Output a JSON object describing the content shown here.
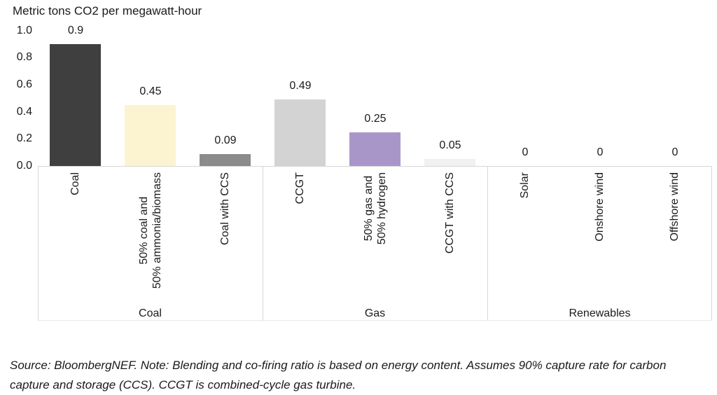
{
  "header": {
    "title": "Metric tons CO2 per megawatt-hour"
  },
  "footnote": {
    "text": "Source: BloombergNEF. Note: Blending and co-firing ratio is based on energy content. Assumes 90% capture rate for carbon capture and storage (CCS). CCGT is combined-cycle gas turbine."
  },
  "chart_data": {
    "type": "bar",
    "title": "Metric tons CO2 per megawatt-hour",
    "ylabel": "Metric tons CO2 per megawatt-hour",
    "ylim": [
      0,
      1.0
    ],
    "ytick_labels": [
      "1.0",
      "0.8",
      "0.6",
      "0.4",
      "0.2",
      "0.0"
    ],
    "grid": false,
    "legend": "none",
    "value_labels_shown": true,
    "groups": [
      {
        "label": "Coal",
        "bars": [
          {
            "category": "Coal",
            "value": 0.9,
            "value_label": "0.9",
            "color": "#3f3f3f"
          },
          {
            "category": "50% coal and\n50% ammonia/biomass",
            "value": 0.45,
            "value_label": "0.45",
            "color": "#fcf3d1"
          },
          {
            "category": "Coal with CCS",
            "value": 0.09,
            "value_label": "0.09",
            "color": "#8b8b8b"
          }
        ]
      },
      {
        "label": "Gas",
        "bars": [
          {
            "category": "CCGT",
            "value": 0.49,
            "value_label": "0.49",
            "color": "#d3d3d3"
          },
          {
            "category": "50% gas and\n50% hydrogen",
            "value": 0.25,
            "value_label": "0.25",
            "color": "#a996c9"
          },
          {
            "category": "CCGT with CCS",
            "value": 0.05,
            "value_label": "0.05",
            "color": "#f1f1f1"
          }
        ]
      },
      {
        "label": "Renewables",
        "bars": [
          {
            "category": "Solar",
            "value": 0,
            "value_label": "0",
            "color": null
          },
          {
            "category": "Onshore wind",
            "value": 0,
            "value_label": "0",
            "color": null
          },
          {
            "category": "Offshore wind",
            "value": 0,
            "value_label": "0",
            "color": null
          }
        ]
      }
    ]
  }
}
